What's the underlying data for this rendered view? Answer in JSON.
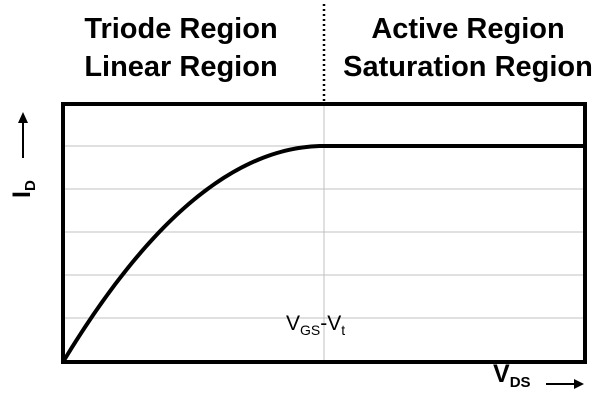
{
  "chart_data": {
    "type": "line",
    "regions": [
      {
        "name": "triode-region",
        "lines": [
          "Triode Region",
          "Linear Region"
        ]
      },
      {
        "name": "active-region",
        "lines": [
          "Active Region",
          "Saturation Region"
        ]
      }
    ],
    "xlabel": {
      "main": "V",
      "sub": "DS"
    },
    "ylabel": {
      "main": "I",
      "sub": "D"
    },
    "annotation": {
      "v": "V",
      "gs": "GS",
      "dash": "-V",
      "t": "t"
    },
    "xlim": [
      0,
      1
    ],
    "ylim": [
      0,
      1
    ],
    "boundary_x": 0.5,
    "grid": {
      "horizontal": true,
      "vertical_at_boundary": true,
      "lines": [
        0.167,
        0.333,
        0.5,
        0.667,
        0.833
      ]
    },
    "series": [
      {
        "x": [
          0,
          0.05,
          0.1,
          0.15,
          0.2,
          0.25,
          0.3,
          0.35,
          0.4,
          0.45,
          0.5,
          0.6,
          0.7,
          0.8,
          0.9,
          1.0
        ],
        "y": [
          0,
          0.19,
          0.36,
          0.51,
          0.64,
          0.75,
          0.84,
          0.91,
          0.96,
          0.99,
          1.0,
          1.0,
          1.0,
          1.0,
          1.0,
          1.0
        ]
      }
    ],
    "colors": {
      "curve": "#000000",
      "frame": "#000000",
      "grid": "#c0c0c0"
    }
  }
}
